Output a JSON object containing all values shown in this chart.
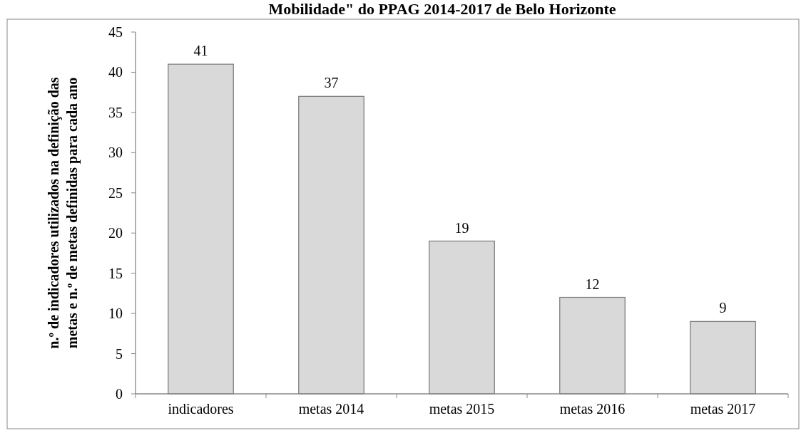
{
  "chart_data": {
    "type": "bar",
    "title": "Mobilidade\" do PPAG 2014-2017 de Belo Horizonte",
    "ylabel": "n.º de indicadores utilizados na definição das metas e n.º de metas definidas para cada ano",
    "categories": [
      "indicadores",
      "metas 2014",
      "metas 2015",
      "metas 2016",
      "metas 2017"
    ],
    "values": [
      41,
      37,
      19,
      12,
      9
    ],
    "color": "#d9d9d9",
    "ylim": [
      0,
      45
    ],
    "yticks": [
      0,
      5,
      10,
      15,
      20,
      25,
      30,
      35,
      40,
      45
    ],
    "data_labels": true,
    "grid": false
  }
}
